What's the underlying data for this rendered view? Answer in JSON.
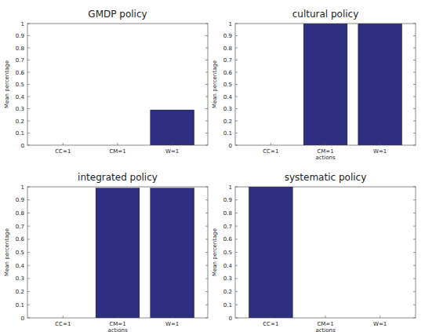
{
  "chart_data": [
    {
      "type": "bar",
      "title": "GMDP policy",
      "y_label": "Mean percentage",
      "categories": [
        "CC=1",
        "CM=1",
        "W=1"
      ],
      "values": [
        0,
        0,
        0.29
      ],
      "color": "#2e2f82",
      "ylim": [
        0,
        1
      ],
      "yticks": [
        0,
        0.1,
        0.2,
        0.3,
        0.4,
        0.5,
        0.6,
        0.7,
        0.8,
        0.9,
        1
      ],
      "grid": false
    },
    {
      "type": "bar",
      "title": "cultural policy",
      "x_label": "actions",
      "y_label": "Mean percentage",
      "categories": [
        "CC=1",
        "CM=1",
        "W=1"
      ],
      "values": [
        0,
        1,
        1
      ],
      "color": "#2e2f82",
      "ylim": [
        0,
        1
      ],
      "yticks": [
        0,
        0.1,
        0.2,
        0.3,
        0.4,
        0.5,
        0.6,
        0.7,
        0.8,
        0.9,
        1
      ],
      "grid": false
    },
    {
      "type": "bar",
      "title": "integrated policy",
      "x_label": "actions",
      "y_label": "Mean percentage",
      "categories": [
        "CC=1",
        "CM=1",
        "W=1"
      ],
      "values": [
        0,
        0.99,
        0.99
      ],
      "color": "#2e2f82",
      "ylim": [
        0,
        1
      ],
      "yticks": [
        0,
        0.1,
        0.2,
        0.3,
        0.4,
        0.5,
        0.6,
        0.7,
        0.8,
        0.9,
        1
      ],
      "grid": false
    },
    {
      "type": "bar",
      "title": "systematic policy",
      "x_label": "actions",
      "y_label": "Mean percentage",
      "categories": [
        "CC=1",
        "CM=1",
        "W=1"
      ],
      "values": [
        1,
        0,
        0
      ],
      "color": "#2e2f82",
      "ylim": [
        0,
        1
      ],
      "yticks": [
        0,
        0.1,
        0.2,
        0.3,
        0.4,
        0.5,
        0.6,
        0.7,
        0.8,
        0.9,
        1
      ],
      "grid": false
    }
  ]
}
